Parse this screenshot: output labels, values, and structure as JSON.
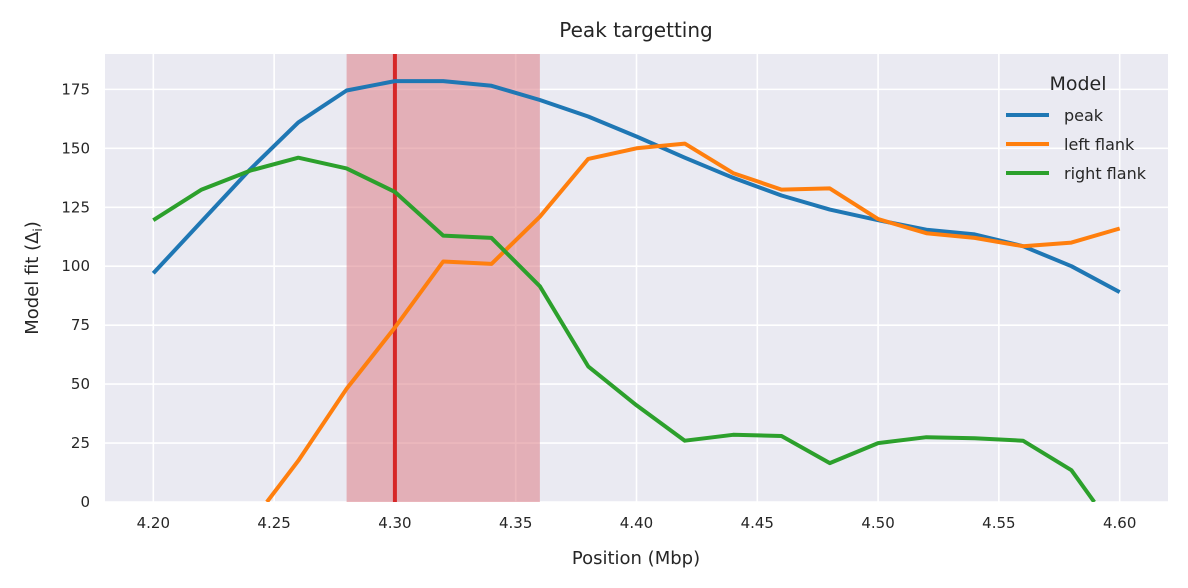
{
  "chart_data": {
    "type": "line",
    "title": "Peak targetting",
    "xlabel": "Position (Mbp)",
    "ylabel": "Model fit (Δ",
    "ylabel_sub": "i",
    "ylabel_tail": ")",
    "xlim": [
      4.18,
      4.62
    ],
    "ylim": [
      0,
      190
    ],
    "xticks": [
      4.2,
      4.25,
      4.3,
      4.35,
      4.4,
      4.45,
      4.5,
      4.55,
      4.6
    ],
    "xtick_labels": [
      "4.20",
      "4.25",
      "4.30",
      "4.35",
      "4.40",
      "4.45",
      "4.50",
      "4.55",
      "4.60"
    ],
    "yticks": [
      0,
      25,
      50,
      75,
      100,
      125,
      150,
      175
    ],
    "ytick_labels": [
      "0",
      "25",
      "50",
      "75",
      "100",
      "125",
      "150",
      "175"
    ],
    "grid": true,
    "legend": {
      "title": "Model",
      "position": "top-right"
    },
    "highlight_region": {
      "x_start": 4.28,
      "x_end": 4.36,
      "color": "#dc7d86"
    },
    "vertical_line": {
      "x": 4.3,
      "color": "#d62728"
    },
    "x": [
      4.2,
      4.22,
      4.24,
      4.26,
      4.28,
      4.3,
      4.32,
      4.34,
      4.36,
      4.38,
      4.4,
      4.42,
      4.44,
      4.46,
      4.48,
      4.5,
      4.52,
      4.54,
      4.56,
      4.58,
      4.6
    ],
    "series": [
      {
        "name": "peak",
        "color": "#1f77b4",
        "values": [
          97,
          119,
          141,
          161,
          174.5,
          178.5,
          178.5,
          176.5,
          170.5,
          163.5,
          155,
          146,
          137.5,
          130,
          124,
          119.5,
          115.5,
          113.5,
          108.5,
          100,
          89
        ]
      },
      {
        "name": "left flank",
        "color": "#ff7f0e",
        "values": [
          null,
          null,
          null,
          17.5,
          48,
          74,
          102,
          101,
          121,
          145.5,
          150,
          152,
          139.5,
          132.5,
          133,
          120,
          114,
          112,
          108.5,
          110,
          116
        ]
      },
      {
        "name": "right flank",
        "color": "#2ca02c",
        "values": [
          119.5,
          132.5,
          140.5,
          146,
          141.5,
          131.5,
          113,
          112,
          91.5,
          57.5,
          41,
          26,
          28.5,
          28,
          16.5,
          25,
          27.5,
          27,
          26,
          13.5,
          null
        ]
      }
    ],
    "segment_extensions": [
      {
        "series": "left flank",
        "from": [
          4.247,
          0
        ],
        "to": [
          4.26,
          17.5
        ]
      },
      {
        "series": "right flank",
        "from": [
          4.58,
          13.5
        ],
        "to": [
          4.5895,
          0
        ]
      }
    ]
  }
}
